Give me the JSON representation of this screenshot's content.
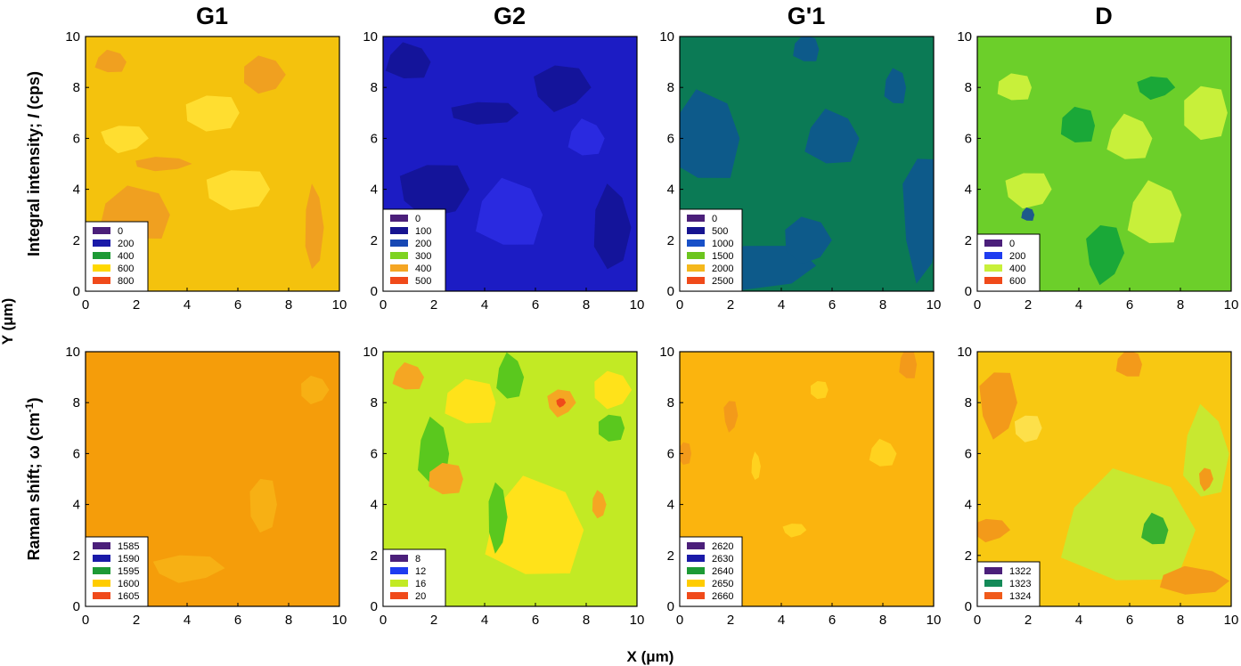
{
  "figure": {
    "x_axis_label": "X (μm)",
    "y_axis_label": "Y (μm)",
    "columns": [
      "G1",
      "G2",
      "G'1",
      "D"
    ],
    "rows": [
      {
        "prefix": "Integral intensity; ",
        "italic": "I",
        "suffix": " (cps)"
      },
      {
        "prefix": "Raman shift; ω (cm",
        "sup": "-1",
        "suffix": ")"
      }
    ]
  },
  "chart_data": [
    {
      "type": "heatmap",
      "title": "G1",
      "row": "Integral intensity",
      "xlim": [
        0,
        10
      ],
      "ylim": [
        0,
        10
      ],
      "x_ticks": [
        "0",
        "2",
        "4",
        "6",
        "8",
        "10"
      ],
      "y_ticks": [
        "0",
        "2",
        "4",
        "6",
        "8",
        "10"
      ],
      "base_color": "#f4c20d",
      "legend": [
        {
          "label": "0",
          "color": "#4b1f7a"
        },
        {
          "label": "200",
          "color": "#1a1aa8"
        },
        {
          "label": "400",
          "color": "#1d9a35"
        },
        {
          "label": "600",
          "color": "#ffd800"
        },
        {
          "label": "800",
          "color": "#f04a1a"
        }
      ],
      "patches": [
        {
          "x": 1,
          "y": 9,
          "rx": 0.7,
          "ry": 0.5,
          "color": "#f0a020"
        },
        {
          "x": 7,
          "y": 8.5,
          "rx": 0.9,
          "ry": 0.8,
          "color": "#f0a020"
        },
        {
          "x": 3,
          "y": 5,
          "rx": 1.2,
          "ry": 0.3,
          "color": "#f0a020"
        },
        {
          "x": 9,
          "y": 2.5,
          "rx": 0.4,
          "ry": 1.8,
          "color": "#f0a020"
        },
        {
          "x": 2,
          "y": 3,
          "rx": 1.6,
          "ry": 1.2,
          "color": "#f0a020"
        },
        {
          "x": 5,
          "y": 7,
          "rx": 1.2,
          "ry": 0.8,
          "color": "#ffde30"
        },
        {
          "x": 6,
          "y": 4,
          "rx": 1.4,
          "ry": 0.9,
          "color": "#ffde30"
        },
        {
          "x": 1.5,
          "y": 6,
          "rx": 1.0,
          "ry": 0.6,
          "color": "#ffde30"
        }
      ]
    },
    {
      "type": "heatmap",
      "title": "G2",
      "row": "Integral intensity",
      "xlim": [
        0,
        10
      ],
      "ylim": [
        0,
        10
      ],
      "x_ticks": [
        "0",
        "2",
        "4",
        "6",
        "8",
        "10"
      ],
      "y_ticks": [
        "0",
        "2",
        "4",
        "6",
        "8",
        "10"
      ],
      "base_color": "#1c1cc4",
      "legend": [
        {
          "label": "0",
          "color": "#4b1f7a"
        },
        {
          "label": "100",
          "color": "#161490"
        },
        {
          "label": "200",
          "color": "#1848b4"
        },
        {
          "label": "300",
          "color": "#7ed321"
        },
        {
          "label": "400",
          "color": "#f5a623"
        },
        {
          "label": "500",
          "color": "#f04a1a"
        }
      ],
      "patches": [
        {
          "x": 1,
          "y": 9,
          "rx": 1.0,
          "ry": 0.8,
          "color": "#14149a"
        },
        {
          "x": 7,
          "y": 8,
          "rx": 1.2,
          "ry": 1.0,
          "color": "#14149a"
        },
        {
          "x": 4,
          "y": 7,
          "rx": 1.5,
          "ry": 0.5,
          "color": "#14149a"
        },
        {
          "x": 2,
          "y": 4,
          "rx": 1.5,
          "ry": 1.2,
          "color": "#14149a"
        },
        {
          "x": 9,
          "y": 2.5,
          "rx": 0.8,
          "ry": 1.8,
          "color": "#14149a"
        },
        {
          "x": 5,
          "y": 3,
          "rx": 1.5,
          "ry": 1.5,
          "color": "#2a2ae0"
        },
        {
          "x": 8,
          "y": 6,
          "rx": 0.8,
          "ry": 0.8,
          "color": "#2a2ae0"
        }
      ]
    },
    {
      "type": "heatmap",
      "title": "G'1",
      "row": "Integral intensity",
      "xlim": [
        0,
        10
      ],
      "ylim": [
        0,
        10
      ],
      "x_ticks": [
        "0",
        "2",
        "4",
        "6",
        "8",
        "10"
      ],
      "y_ticks": [
        "0",
        "2",
        "4",
        "6",
        "8",
        "10"
      ],
      "base_color": "#0b7a55",
      "legend": [
        {
          "label": "0",
          "color": "#4b1f7a"
        },
        {
          "label": "500",
          "color": "#161490"
        },
        {
          "label": "1000",
          "color": "#1850c8"
        },
        {
          "label": "1500",
          "color": "#6cc51e"
        },
        {
          "label": "2000",
          "color": "#f5b81c"
        },
        {
          "label": "2500",
          "color": "#f04a1a"
        }
      ],
      "patches": [
        {
          "x": 1,
          "y": 6,
          "rx": 1.6,
          "ry": 2.0,
          "color": "#0d5a8a"
        },
        {
          "x": 6,
          "y": 6,
          "rx": 1.2,
          "ry": 1.2,
          "color": "#0d5a8a"
        },
        {
          "x": 3,
          "y": 1,
          "rx": 2.5,
          "ry": 1.0,
          "color": "#0d5a8a"
        },
        {
          "x": 9.5,
          "y": 3,
          "rx": 0.8,
          "ry": 2.8,
          "color": "#0d5a8a"
        },
        {
          "x": 8.5,
          "y": 8,
          "rx": 0.5,
          "ry": 0.8,
          "color": "#0d5a8a"
        },
        {
          "x": 5,
          "y": 9.5,
          "rx": 0.6,
          "ry": 0.6,
          "color": "#0d5a8a"
        },
        {
          "x": 5,
          "y": 2,
          "rx": 1.0,
          "ry": 1.0,
          "color": "#0d5a8a"
        }
      ]
    },
    {
      "type": "heatmap",
      "title": "D",
      "row": "Integral intensity",
      "xlim": [
        0,
        10
      ],
      "ylim": [
        0,
        10
      ],
      "x_ticks": [
        "0",
        "2",
        "4",
        "6",
        "8",
        "10"
      ],
      "y_ticks": [
        "0",
        "2",
        "4",
        "6",
        "8",
        "10"
      ],
      "base_color": "#6ccf2a",
      "legend": [
        {
          "label": "0",
          "color": "#4b1f7a"
        },
        {
          "label": "200",
          "color": "#1e3cf0"
        },
        {
          "label": "400",
          "color": "#c8f03a"
        },
        {
          "label": "600",
          "color": "#f04a1a"
        }
      ],
      "patches": [
        {
          "x": 1.5,
          "y": 8,
          "rx": 0.8,
          "ry": 0.6,
          "color": "#c8f03a"
        },
        {
          "x": 6,
          "y": 6,
          "rx": 1.0,
          "ry": 1.0,
          "color": "#c8f03a"
        },
        {
          "x": 9,
          "y": 7,
          "rx": 1.0,
          "ry": 1.2,
          "color": "#c8f03a"
        },
        {
          "x": 7,
          "y": 3,
          "rx": 1.2,
          "ry": 1.4,
          "color": "#c8f03a"
        },
        {
          "x": 2,
          "y": 4,
          "rx": 1.0,
          "ry": 0.8,
          "color": "#c8f03a"
        },
        {
          "x": 5,
          "y": 1.5,
          "rx": 0.8,
          "ry": 1.3,
          "color": "#1aa838"
        },
        {
          "x": 7,
          "y": 8,
          "rx": 0.8,
          "ry": 0.5,
          "color": "#1aa838"
        },
        {
          "x": 2,
          "y": 3,
          "rx": 0.3,
          "ry": 0.3,
          "color": "#1e5a8a"
        },
        {
          "x": 4,
          "y": 6.5,
          "rx": 0.8,
          "ry": 0.8,
          "color": "#1aa838"
        }
      ]
    },
    {
      "type": "heatmap",
      "title": "G1",
      "row": "Raman shift",
      "xlim": [
        0,
        10
      ],
      "ylim": [
        0,
        10
      ],
      "x_ticks": [
        "0",
        "2",
        "4",
        "6",
        "8",
        "10"
      ],
      "y_ticks": [
        "0",
        "2",
        "4",
        "6",
        "8",
        "10"
      ],
      "base_color": "#f59d0a",
      "legend": [
        {
          "label": "1585",
          "color": "#4b1f7a"
        },
        {
          "label": "1590",
          "color": "#1a1aa8"
        },
        {
          "label": "1595",
          "color": "#1d9a35"
        },
        {
          "label": "1600",
          "color": "#ffcc00"
        },
        {
          "label": "1605",
          "color": "#f04a1a"
        }
      ],
      "patches": [
        {
          "x": 9,
          "y": 8.5,
          "rx": 0.6,
          "ry": 0.6,
          "color": "#f7b014"
        },
        {
          "x": 7,
          "y": 4,
          "rx": 0.6,
          "ry": 1.2,
          "color": "#f7b014"
        },
        {
          "x": 4,
          "y": 1.5,
          "rx": 1.5,
          "ry": 0.6,
          "color": "#f7b014"
        }
      ]
    },
    {
      "type": "heatmap",
      "title": "G2",
      "row": "Raman shift",
      "xlim": [
        0,
        10
      ],
      "ylim": [
        0,
        10
      ],
      "x_ticks": [
        "0",
        "2",
        "4",
        "6",
        "8",
        "10"
      ],
      "y_ticks": [
        "0",
        "2",
        "4",
        "6",
        "8",
        "10"
      ],
      "base_color": "#c2ea24",
      "legend": [
        {
          "label": "8",
          "color": "#4b1f7a"
        },
        {
          "label": "12",
          "color": "#1e3cf0"
        },
        {
          "label": "16",
          "color": "#c2ea24"
        },
        {
          "label": "20",
          "color": "#f04a1a"
        }
      ],
      "patches": [
        {
          "x": 6,
          "y": 3,
          "rx": 2.2,
          "ry": 2.2,
          "color": "#ffe21a"
        },
        {
          "x": 3.5,
          "y": 8,
          "rx": 1.2,
          "ry": 1.0,
          "color": "#ffe21a"
        },
        {
          "x": 9,
          "y": 8.5,
          "rx": 0.8,
          "ry": 0.8,
          "color": "#ffe21a"
        },
        {
          "x": 2,
          "y": 6,
          "rx": 0.7,
          "ry": 1.5,
          "color": "#5ac81e"
        },
        {
          "x": 5,
          "y": 9,
          "rx": 0.6,
          "ry": 1.0,
          "color": "#5ac81e"
        },
        {
          "x": 4.5,
          "y": 3.5,
          "rx": 0.4,
          "ry": 1.5,
          "color": "#5ac81e"
        },
        {
          "x": 9,
          "y": 7,
          "rx": 0.6,
          "ry": 0.6,
          "color": "#5ac81e"
        },
        {
          "x": 1,
          "y": 1,
          "rx": 1.5,
          "ry": 0.8,
          "color": "#5ac81e"
        },
        {
          "x": 1,
          "y": 9,
          "rx": 0.7,
          "ry": 0.6,
          "color": "#f5a623"
        },
        {
          "x": 7,
          "y": 8,
          "rx": 0.6,
          "ry": 0.6,
          "color": "#f5a623"
        },
        {
          "x": 2.5,
          "y": 5,
          "rx": 0.8,
          "ry": 0.7,
          "color": "#f5a623"
        },
        {
          "x": 8.5,
          "y": 4,
          "rx": 0.3,
          "ry": 0.6,
          "color": "#f5a623"
        },
        {
          "x": 7,
          "y": 8,
          "rx": 0.2,
          "ry": 0.2,
          "color": "#f04a1a"
        }
      ]
    },
    {
      "type": "heatmap",
      "title": "G'1",
      "row": "Raman shift",
      "xlim": [
        0,
        10
      ],
      "ylim": [
        0,
        10
      ],
      "x_ticks": [
        "0",
        "2",
        "4",
        "6",
        "8",
        "10"
      ],
      "y_ticks": [
        "0",
        "2",
        "4",
        "6",
        "8",
        "10"
      ],
      "base_color": "#fbb40e",
      "legend": [
        {
          "label": "2620",
          "color": "#4b1f7a"
        },
        {
          "label": "2630",
          "color": "#1a1aa8"
        },
        {
          "label": "2640",
          "color": "#1d9a35"
        },
        {
          "label": "2650",
          "color": "#ffcc00"
        },
        {
          "label": "2660",
          "color": "#f04a1a"
        }
      ],
      "patches": [
        {
          "x": 9,
          "y": 9.5,
          "rx": 0.4,
          "ry": 0.7,
          "color": "#f39a1a"
        },
        {
          "x": 2,
          "y": 7.5,
          "rx": 0.3,
          "ry": 0.7,
          "color": "#f39a1a"
        },
        {
          "x": 0.2,
          "y": 6,
          "rx": 0.3,
          "ry": 0.5,
          "color": "#f39a1a"
        },
        {
          "x": 8,
          "y": 6,
          "rx": 0.6,
          "ry": 0.6,
          "color": "#ffd21f"
        },
        {
          "x": 5.5,
          "y": 8.5,
          "rx": 0.4,
          "ry": 0.4,
          "color": "#ffd21f"
        },
        {
          "x": 3,
          "y": 5.5,
          "rx": 0.2,
          "ry": 0.6,
          "color": "#ffd21f"
        },
        {
          "x": 4.5,
          "y": 3,
          "rx": 0.5,
          "ry": 0.3,
          "color": "#ffd21f"
        }
      ]
    },
    {
      "type": "heatmap",
      "title": "D",
      "row": "Raman shift",
      "xlim": [
        0,
        10
      ],
      "ylim": [
        0,
        10
      ],
      "x_ticks": [
        "0",
        "2",
        "4",
        "6",
        "8",
        "10"
      ],
      "y_ticks": [
        "0",
        "2",
        "4",
        "6",
        "8",
        "10"
      ],
      "base_color": "#f8c812",
      "legend": [
        {
          "label": "1322",
          "color": "#4b1f7a"
        },
        {
          "label": "1323",
          "color": "#148a58"
        },
        {
          "label": "1324",
          "color": "#f05a1a"
        }
      ],
      "patches": [
        {
          "x": 6,
          "y": 3,
          "rx": 3.0,
          "ry": 2.5,
          "color": "#c8e830"
        },
        {
          "x": 9,
          "y": 6,
          "rx": 1.0,
          "ry": 2.0,
          "color": "#c8e830"
        },
        {
          "x": 0.8,
          "y": 8,
          "rx": 0.8,
          "ry": 1.5,
          "color": "#f39a1a"
        },
        {
          "x": 8.5,
          "y": 1,
          "rx": 1.5,
          "ry": 0.6,
          "color": "#f39a1a"
        },
        {
          "x": 6,
          "y": 9.5,
          "rx": 0.6,
          "ry": 0.6,
          "color": "#f39a1a"
        },
        {
          "x": 9,
          "y": 5,
          "rx": 0.3,
          "ry": 0.5,
          "color": "#f39a1a"
        },
        {
          "x": 0.5,
          "y": 3,
          "rx": 0.8,
          "ry": 0.5,
          "color": "#f39a1a"
        },
        {
          "x": 7,
          "y": 3,
          "rx": 0.6,
          "ry": 0.7,
          "color": "#38b030"
        },
        {
          "x": 2,
          "y": 7,
          "rx": 0.6,
          "ry": 0.6,
          "color": "#fde04a"
        }
      ]
    }
  ]
}
